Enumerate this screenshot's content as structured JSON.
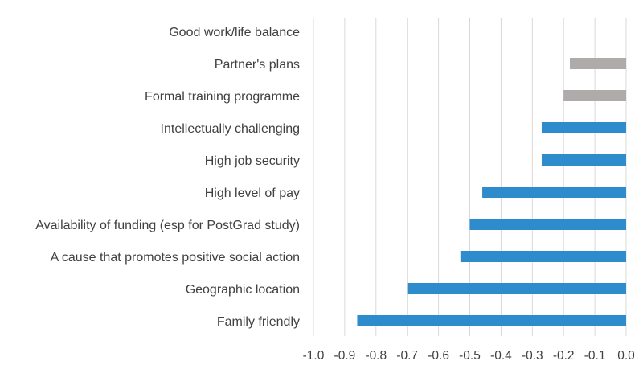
{
  "chart_data": {
    "type": "bar",
    "orientation": "horizontal",
    "title": "",
    "xlabel": "",
    "ylabel": "",
    "xlim": [
      -1.0,
      0.0
    ],
    "x_ticks": [
      -1.0,
      -0.9,
      -0.8,
      -0.7,
      -0.6,
      -0.5,
      -0.4,
      -0.3,
      -0.2,
      -0.1,
      0.0
    ],
    "x_tick_labels": [
      "-1.0",
      "-0.9",
      "-0.8",
      "-0.7",
      "-0.6",
      "-0.5",
      "-0.4",
      "-0.3",
      "-0.2",
      "-0.1",
      "0.0"
    ],
    "grid": "vertical",
    "legend": "none",
    "categories": [
      "Good work/life balance",
      "Partner's plans",
      "Formal training programme",
      "Intellectually challenging",
      "High job security",
      "High level of pay",
      "Availability of funding (esp for PostGrad study)",
      "A cause that promotes positive social action",
      "Geographic location",
      "Family friendly"
    ],
    "values": [
      0.0,
      -0.18,
      -0.2,
      -0.27,
      -0.27,
      -0.46,
      -0.5,
      -0.53,
      -0.7,
      -0.86
    ],
    "bar_colors": [
      "#2e8bcc",
      "#b0abab",
      "#b0abab",
      "#2e8bcc",
      "#2e8bcc",
      "#2e8bcc",
      "#2e8bcc",
      "#2e8bcc",
      "#2e8bcc",
      "#2e8bcc"
    ]
  }
}
